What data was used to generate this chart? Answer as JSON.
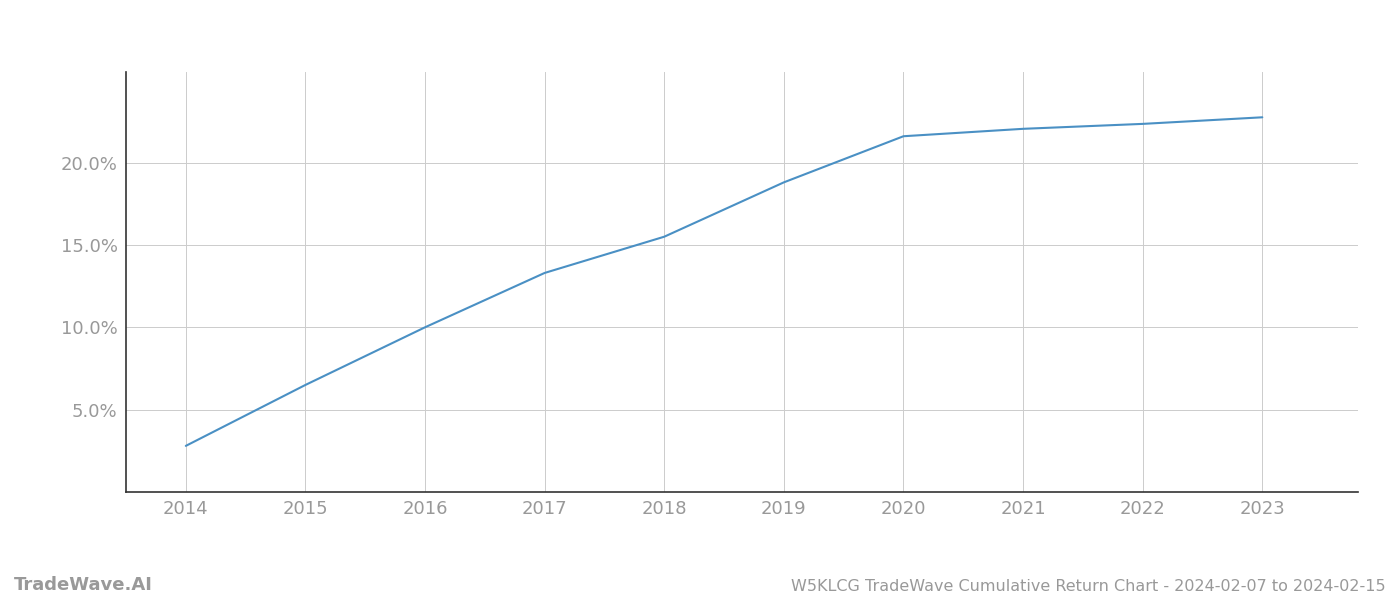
{
  "x_years": [
    2014,
    2015,
    2016,
    2017,
    2018,
    2019,
    2020,
    2021,
    2022,
    2023
  ],
  "y_values": [
    2.8,
    6.5,
    10.0,
    13.3,
    15.5,
    18.8,
    21.6,
    22.05,
    22.35,
    22.75
  ],
  "line_color": "#4a90c4",
  "line_width": 1.5,
  "background_color": "#ffffff",
  "grid_color": "#cccccc",
  "tick_color": "#999999",
  "spine_color": "#333333",
  "title": "W5KLCG TradeWave Cumulative Return Chart - 2024-02-07 to 2024-02-15",
  "watermark": "TradeWave.AI",
  "xlim": [
    2013.5,
    2023.8
  ],
  "ylim": [
    0,
    25.5
  ],
  "yticks": [
    5.0,
    10.0,
    15.0,
    20.0
  ],
  "ytick_labels": [
    "5.0%",
    "10.0%",
    "15.0%",
    "20.0%"
  ],
  "xticks": [
    2014,
    2015,
    2016,
    2017,
    2018,
    2019,
    2020,
    2021,
    2022,
    2023
  ],
  "figsize": [
    14.0,
    6.0
  ],
  "dpi": 100,
  "font_size_ticks": 13,
  "font_size_footer": 11.5,
  "font_size_watermark": 13
}
